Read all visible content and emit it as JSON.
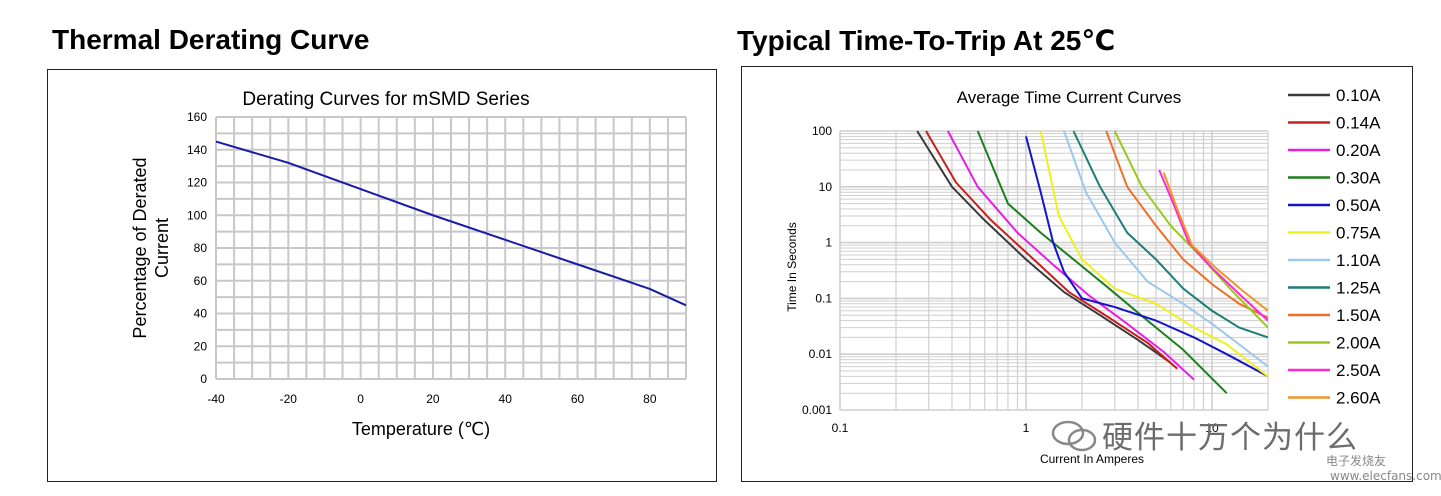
{
  "headings": {
    "left": "Thermal Derating Curve",
    "right": "Typical Time-To-Trip At 25℃"
  },
  "watermark": {
    "main": "硬件十万个为什么",
    "sub": "电子发烧友",
    "sub2": "www.elecfans.com"
  },
  "chart_data": [
    {
      "type": "line",
      "title": "Derating Curves for mSMD Series",
      "xlabel": "Temperature (℃)",
      "ylabel_lines": [
        "Percentage of Derated",
        "Current"
      ],
      "xlim": [
        -40,
        90
      ],
      "ylim": [
        0,
        160
      ],
      "xticks": [
        -40,
        -20,
        0,
        20,
        40,
        60,
        80
      ],
      "yticks": [
        0,
        20,
        40,
        60,
        80,
        100,
        120,
        140,
        160
      ],
      "grid": true,
      "color": "#1a1aa8",
      "series": [
        {
          "name": "mSMD",
          "x": [
            -40,
            -20,
            0,
            20,
            40,
            60,
            80,
            90
          ],
          "y": [
            145,
            132,
            116,
            100,
            85,
            70,
            55,
            45
          ]
        }
      ]
    },
    {
      "type": "line",
      "scale": "log-log",
      "title": "Average Time Current Curves",
      "xlabel": "Current In Amperes",
      "ylabel": "Time In Seconds",
      "xlim": [
        0.1,
        20
      ],
      "ylim": [
        0.001,
        100
      ],
      "xticks": [
        "0.1",
        "1",
        "10"
      ],
      "yticks": [
        "0.001",
        "0.01",
        "0.1",
        "1",
        "10",
        "100"
      ],
      "grid": true,
      "legend_position": "right",
      "series": [
        {
          "name": "0.10A",
          "color": "#3a3a3a",
          "x": [
            0.26,
            0.4,
            0.6,
            1.0,
            1.6,
            2.5,
            4.0,
            6.0
          ],
          "y": [
            100,
            10,
            2.5,
            0.5,
            0.13,
            0.05,
            0.018,
            0.007
          ]
        },
        {
          "name": "0.14A",
          "color": "#c81e1e",
          "x": [
            0.29,
            0.42,
            0.65,
            1.1,
            1.7,
            2.8,
            4.5,
            6.5
          ],
          "y": [
            100,
            12,
            2.5,
            0.5,
            0.13,
            0.045,
            0.016,
            0.0055
          ]
        },
        {
          "name": "0.20A",
          "color": "#e61ee6",
          "x": [
            0.38,
            0.55,
            0.9,
            1.4,
            2.2,
            3.5,
            5.5,
            8.0
          ],
          "y": [
            100,
            10,
            1.5,
            0.4,
            0.11,
            0.035,
            0.011,
            0.0035
          ]
        },
        {
          "name": "0.30A",
          "color": "#1e7d1e",
          "x": [
            0.55,
            0.8,
            1.2,
            1.8,
            2.8,
            4.5,
            7.0,
            12.0
          ],
          "y": [
            100,
            5,
            1.5,
            0.5,
            0.15,
            0.04,
            0.012,
            0.002
          ]
        },
        {
          "name": "0.50A",
          "color": "#1414c8",
          "x": [
            1.0,
            1.2,
            1.4,
            1.6,
            2.0,
            3.0,
            5.0,
            8.0,
            12.0,
            20.0
          ],
          "y": [
            80,
            8,
            1.0,
            0.3,
            0.1,
            0.07,
            0.04,
            0.02,
            0.01,
            0.004
          ]
        },
        {
          "name": "0.75A",
          "color": "#f0f01e",
          "x": [
            1.2,
            1.5,
            2.0,
            3.0,
            5.0,
            8.0,
            12.0,
            20.0
          ],
          "y": [
            100,
            3,
            0.5,
            0.15,
            0.08,
            0.03,
            0.015,
            0.004
          ]
        },
        {
          "name": "1.10A",
          "color": "#9ac8ee",
          "x": [
            1.6,
            2.1,
            3.0,
            4.5,
            7.0,
            10.0,
            14.0,
            20.0
          ],
          "y": [
            100,
            8,
            1.0,
            0.2,
            0.08,
            0.035,
            0.015,
            0.006
          ]
        },
        {
          "name": "1.25A",
          "color": "#1e7d78",
          "x": [
            1.8,
            2.5,
            3.5,
            5.0,
            7.0,
            10.0,
            14.0,
            20.0
          ],
          "y": [
            100,
            10,
            1.5,
            0.5,
            0.15,
            0.06,
            0.03,
            0.02
          ]
        },
        {
          "name": "1.50A",
          "color": "#f06e28",
          "x": [
            2.7,
            3.5,
            5.0,
            7.0,
            10.0,
            14.0,
            20.0
          ],
          "y": [
            100,
            10,
            2.0,
            0.5,
            0.18,
            0.08,
            0.045
          ]
        },
        {
          "name": "2.00A",
          "color": "#9ac81e",
          "x": [
            3.0,
            4.2,
            6.0,
            9.0,
            13.0,
            20.0
          ],
          "y": [
            100,
            10,
            2.0,
            0.5,
            0.13,
            0.03
          ]
        },
        {
          "name": "2.50A",
          "color": "#ff28d2",
          "x": [
            5.2,
            6.2,
            7.5,
            10.0,
            14.0,
            20.0
          ],
          "y": [
            20,
            5,
            1.0,
            0.35,
            0.12,
            0.04
          ]
        },
        {
          "name": "2.60A",
          "color": "#f09628",
          "x": [
            5.5,
            6.5,
            7.8,
            10.5,
            14.5,
            20.0
          ],
          "y": [
            18,
            4,
            0.9,
            0.35,
            0.14,
            0.06
          ]
        }
      ]
    }
  ]
}
